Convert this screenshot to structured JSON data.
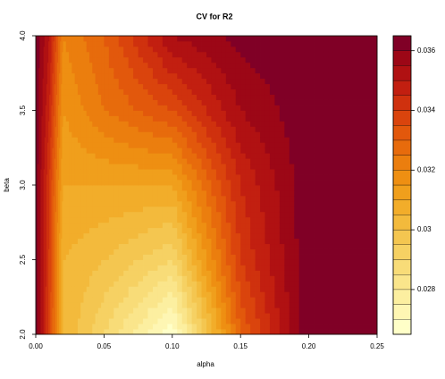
{
  "chart_data": {
    "type": "filled-contour",
    "title": "CV for R2",
    "x_label": "alpha",
    "y_label": "beta",
    "x": [
      0,
      0.01,
      0.02,
      0.05,
      0.1,
      0.15,
      0.2,
      0.25
    ],
    "y": [
      2.0,
      2.5,
      3.0,
      3.5,
      4.0
    ],
    "z": [
      [
        0.0364,
        0.0338,
        0.0305,
        0.029,
        0.0266,
        0.033,
        0.0364,
        0.0364
      ],
      [
        0.0364,
        0.0339,
        0.0305,
        0.03,
        0.029,
        0.034,
        0.0364,
        0.0364
      ],
      [
        0.0364,
        0.034,
        0.031,
        0.031,
        0.031,
        0.0345,
        0.0364,
        0.0364
      ],
      [
        0.0364,
        0.0345,
        0.0315,
        0.0325,
        0.0335,
        0.0355,
        0.0364,
        0.0364
      ],
      [
        0.0364,
        0.035,
        0.032,
        0.033,
        0.0355,
        0.0362,
        0.0364,
        0.0364
      ]
    ],
    "xlim": [
      0,
      0.25
    ],
    "ylim": [
      2.0,
      4.0
    ],
    "xticks": [
      {
        "value": 0,
        "label": "0.00"
      },
      {
        "value": 0.05,
        "label": "0.05"
      },
      {
        "value": 0.1,
        "label": "0.10"
      },
      {
        "value": 0.15,
        "label": "0.15"
      },
      {
        "value": 0.2,
        "label": "0.20"
      },
      {
        "value": 0.25,
        "label": "0.25"
      }
    ],
    "yticks": [
      {
        "value": 2,
        "label": "2.0"
      },
      {
        "value": 2.5,
        "label": "2.5"
      },
      {
        "value": 3,
        "label": "3.0"
      },
      {
        "value": 3.5,
        "label": "3.5"
      },
      {
        "value": 4,
        "label": "4.0"
      }
    ],
    "levels": [
      0.0265,
      0.027,
      0.0275,
      0.028,
      0.0285,
      0.029,
      0.0295,
      0.03,
      0.0305,
      0.031,
      0.0315,
      0.032,
      0.0325,
      0.033,
      0.0335,
      0.034,
      0.0345,
      0.035,
      0.0355,
      0.036,
      0.0365
    ],
    "colors": [
      "#FFFFC8",
      "#FEF6B3",
      "#FCEFA0",
      "#FAE58B",
      "#F8DC78",
      "#F6D163",
      "#F4C650",
      "#F3BA3C",
      "#F2AD2A",
      "#F09F1C",
      "#EE8F12",
      "#EB7E0E",
      "#E76B0C",
      "#E2580C",
      "#DA440D",
      "#CF310E",
      "#C21F10",
      "#B01112",
      "#9C0716",
      "#800026"
    ],
    "colorbar_ticks": [
      0.028,
      0.03,
      0.032,
      0.034,
      0.036
    ]
  }
}
